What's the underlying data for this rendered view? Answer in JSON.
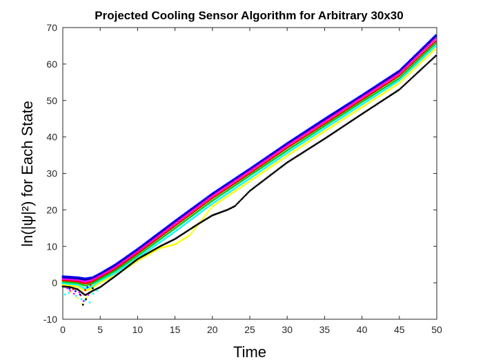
{
  "chart_data": {
    "type": "scatter",
    "title": "Projected Cooling Sensor Algorithm for Arbitrary 30x30",
    "xlabel": "Time",
    "ylabel": "ln(|ψ|²) for Each State",
    "xlim": [
      0,
      50
    ],
    "ylim": [
      -10,
      70
    ],
    "xticks": [
      0,
      5,
      10,
      15,
      20,
      25,
      30,
      35,
      40,
      45,
      50
    ],
    "yticks": [
      -10,
      0,
      10,
      20,
      30,
      40,
      50,
      60,
      70
    ],
    "grid": false,
    "legend": "none",
    "series": [
      {
        "color": "#0000ff",
        "points": [
          [
            0,
            1.8
          ],
          [
            2,
            1.5
          ],
          [
            3,
            1.2
          ],
          [
            4,
            1.5
          ],
          [
            5,
            2.6
          ],
          [
            7,
            5.0
          ],
          [
            10,
            9.3
          ],
          [
            15,
            17.0
          ],
          [
            20,
            24.5
          ],
          [
            25,
            31.3
          ],
          [
            30,
            38.3
          ],
          [
            35,
            45.0
          ],
          [
            40,
            51.5
          ],
          [
            45,
            58.2
          ],
          [
            50,
            68.2
          ]
        ]
      },
      {
        "color": "#0000aa",
        "points": [
          [
            0,
            1.4
          ],
          [
            2,
            1.1
          ],
          [
            3,
            0.8
          ],
          [
            4,
            1.2
          ],
          [
            5,
            2.3
          ],
          [
            7,
            4.7
          ],
          [
            10,
            9.0
          ],
          [
            15,
            16.7
          ],
          [
            20,
            24.2
          ],
          [
            25,
            31.0
          ],
          [
            30,
            38.0
          ],
          [
            35,
            44.7
          ],
          [
            40,
            51.2
          ],
          [
            45,
            57.9
          ],
          [
            50,
            67.8
          ]
        ]
      },
      {
        "color": "#ff00ff",
        "points": [
          [
            0,
            1.0
          ],
          [
            2,
            0.7
          ],
          [
            3,
            0.3
          ],
          [
            4,
            0.8
          ],
          [
            5,
            1.9
          ],
          [
            7,
            4.2
          ],
          [
            10,
            8.5
          ],
          [
            15,
            16.2
          ],
          [
            20,
            23.8
          ],
          [
            25,
            30.6
          ],
          [
            30,
            37.6
          ],
          [
            35,
            44.2
          ],
          [
            40,
            50.8
          ],
          [
            45,
            57.4
          ],
          [
            50,
            67.2
          ]
        ]
      },
      {
        "color": "#ff0000",
        "points": [
          [
            0,
            0.6
          ],
          [
            2,
            0.3
          ],
          [
            3,
            -0.2
          ],
          [
            4,
            0.3
          ],
          [
            5,
            1.4
          ],
          [
            7,
            3.7
          ],
          [
            10,
            8.0
          ],
          [
            15,
            15.6
          ],
          [
            20,
            23.2
          ],
          [
            25,
            30.0
          ],
          [
            30,
            37.0
          ],
          [
            35,
            43.6
          ],
          [
            40,
            50.2
          ],
          [
            45,
            56.8
          ],
          [
            50,
            66.5
          ]
        ]
      },
      {
        "color": "#00cc00",
        "points": [
          [
            0,
            0.2
          ],
          [
            2,
            -0.1
          ],
          [
            3,
            -0.8
          ],
          [
            4,
            -0.2
          ],
          [
            5,
            1.0
          ],
          [
            7,
            3.2
          ],
          [
            10,
            7.4
          ],
          [
            15,
            14.9
          ],
          [
            20,
            22.5
          ],
          [
            25,
            29.4
          ],
          [
            30,
            36.3
          ],
          [
            35,
            43.0
          ],
          [
            40,
            49.6
          ],
          [
            45,
            56.1
          ],
          [
            50,
            65.9
          ]
        ]
      },
      {
        "color": "#00ffff",
        "points": [
          [
            0,
            -0.2
          ],
          [
            2,
            -0.6
          ],
          [
            3,
            -1.6
          ],
          [
            4,
            -0.9
          ],
          [
            5,
            0.5
          ],
          [
            7,
            2.6
          ],
          [
            10,
            6.8
          ],
          [
            15,
            14.0
          ],
          [
            20,
            21.7
          ],
          [
            25,
            28.6
          ],
          [
            30,
            35.6
          ],
          [
            35,
            42.3
          ],
          [
            40,
            48.9
          ],
          [
            45,
            55.5
          ],
          [
            50,
            65.2
          ]
        ]
      },
      {
        "color": "#ffff00",
        "points": [
          [
            0,
            -0.6
          ],
          [
            2,
            -1.0
          ],
          [
            3,
            -2.2
          ],
          [
            4,
            -1.4
          ],
          [
            5,
            0.0
          ],
          [
            7,
            2.0
          ],
          [
            10,
            6.0
          ],
          [
            13,
            9.5
          ],
          [
            15,
            10.5
          ],
          [
            17,
            13.0
          ],
          [
            20,
            20.9
          ],
          [
            25,
            27.8
          ],
          [
            30,
            34.8
          ],
          [
            35,
            41.5
          ],
          [
            40,
            48.1
          ],
          [
            45,
            54.7
          ],
          [
            50,
            64.4
          ]
        ]
      },
      {
        "color": "#000000",
        "points": [
          [
            0,
            -1.0
          ],
          [
            1,
            -1.2
          ],
          [
            2,
            -1.8
          ],
          [
            3,
            -3.4
          ],
          [
            4,
            -2.2
          ],
          [
            5,
            -1.2
          ],
          [
            7,
            1.8
          ],
          [
            10,
            6.5
          ],
          [
            13,
            10.0
          ],
          [
            15,
            12.0
          ],
          [
            18,
            16.0
          ],
          [
            20,
            18.5
          ],
          [
            22,
            20.0
          ],
          [
            23,
            21.0
          ],
          [
            25,
            25.2
          ],
          [
            30,
            33.0
          ],
          [
            35,
            39.5
          ],
          [
            40,
            46.3
          ],
          [
            45,
            53.0
          ],
          [
            50,
            62.5
          ]
        ]
      }
    ],
    "scatter_noise": [
      {
        "color": "#ff00ff",
        "points": [
          [
            0.6,
            -1.5
          ],
          [
            1.0,
            -2.2
          ],
          [
            1.5,
            -3.0
          ],
          [
            2.2,
            -2.6
          ],
          [
            2.8,
            -5.0
          ],
          [
            3.4,
            -3.3
          ]
        ]
      },
      {
        "color": "#00ffff",
        "points": [
          [
            0.3,
            -3.2
          ],
          [
            0.8,
            -2.8
          ],
          [
            1.8,
            -3.6
          ],
          [
            2.5,
            -4.5
          ],
          [
            3.0,
            -4.8
          ],
          [
            3.6,
            -5.4
          ],
          [
            4.1,
            -3.0
          ],
          [
            4.6,
            -2.1
          ]
        ]
      },
      {
        "color": "#ffff00",
        "points": [
          [
            1.2,
            -2.5
          ],
          [
            2.0,
            -4.2
          ],
          [
            2.6,
            -5.8
          ],
          [
            3.2,
            -4.0
          ],
          [
            3.8,
            -1.8
          ]
        ]
      },
      {
        "color": "#ff0000",
        "points": [
          [
            1.4,
            -1.8
          ],
          [
            2.4,
            -3.4
          ],
          [
            3.0,
            -2.0
          ],
          [
            3.7,
            -0.6
          ]
        ]
      },
      {
        "color": "#000000",
        "points": [
          [
            2.7,
            -6.0
          ],
          [
            3.1,
            -4.5
          ],
          [
            3.5,
            -2.8
          ],
          [
            4.0,
            -1.5
          ]
        ]
      },
      {
        "color": "#0000ff",
        "points": [
          [
            0.9,
            -1.6
          ],
          [
            1.7,
            -2.3
          ],
          [
            2.3,
            -3.2
          ],
          [
            3.3,
            -1.2
          ]
        ]
      }
    ]
  }
}
